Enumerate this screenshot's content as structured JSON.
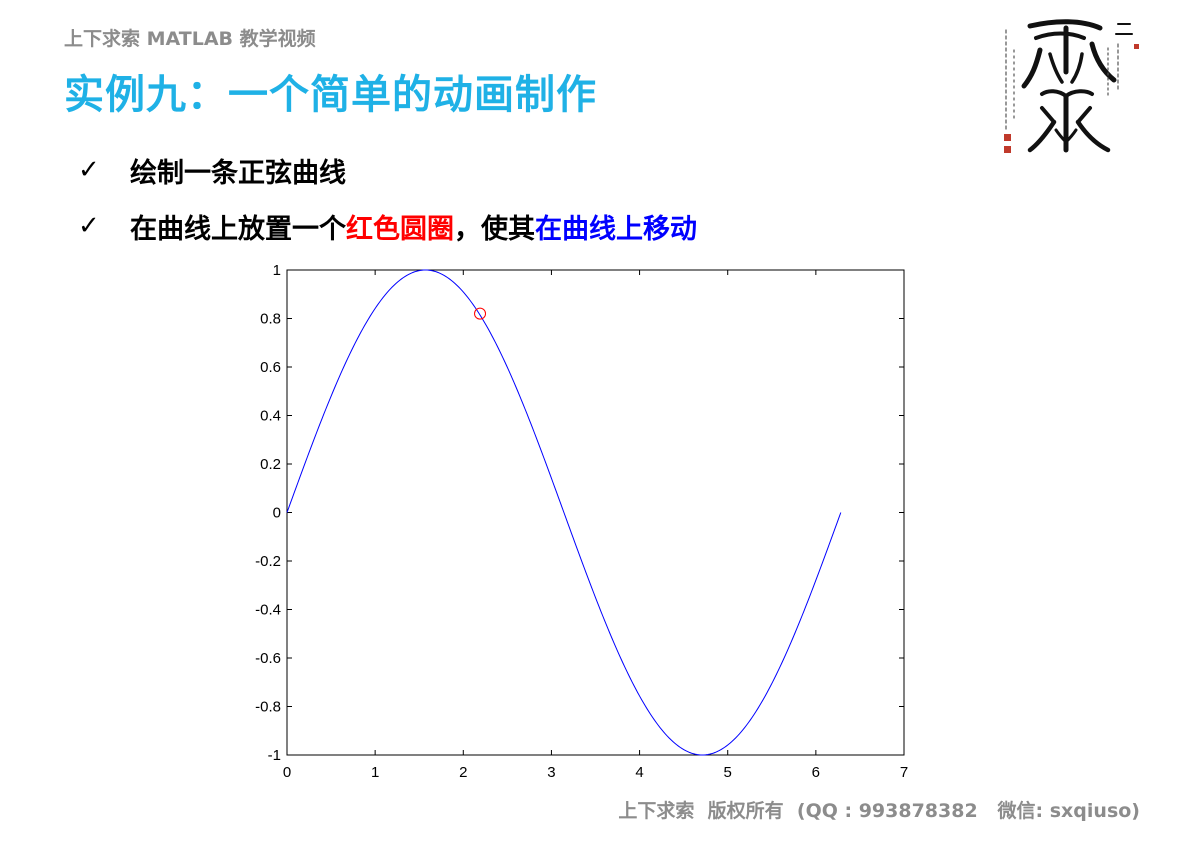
{
  "header": {
    "brand": "上下求索 MATLAB 教学视频"
  },
  "slide": {
    "title": "实例九：一个简单的动画制作",
    "bullets": [
      {
        "parts": [
          {
            "text": "绘制一条正弦曲线",
            "color": "black"
          }
        ]
      },
      {
        "parts": [
          {
            "text": "在曲线上放置一个",
            "color": "black"
          },
          {
            "text": "红色圆圈",
            "color": "red"
          },
          {
            "text": "，使其",
            "color": "black"
          },
          {
            "text": "在曲线上移动",
            "color": "blue"
          }
        ]
      }
    ],
    "check_symbol": "✓"
  },
  "logo": {
    "icon": "calligraphy-seal-icon"
  },
  "chart_data": {
    "type": "line",
    "title": "",
    "xlabel": "",
    "ylabel": "",
    "xlim": [
      0,
      7
    ],
    "ylim": [
      -1,
      1
    ],
    "xticks": [
      0,
      1,
      2,
      3,
      4,
      5,
      6,
      7
    ],
    "yticks": [
      -1,
      -0.8,
      -0.6,
      -0.4,
      -0.2,
      0,
      0.2,
      0.4,
      0.6,
      0.8,
      1
    ],
    "xtick_labels": [
      "0",
      "1",
      "2",
      "3",
      "4",
      "5",
      "6",
      "7"
    ],
    "ytick_labels": [
      "-1",
      "-0.8",
      "-0.6",
      "-0.4",
      "-0.2",
      "0",
      "0.2",
      "0.4",
      "0.6",
      "0.8",
      "1"
    ],
    "grid": false,
    "series": [
      {
        "function": "sin(x)",
        "x_range": [
          0,
          6.2832
        ],
        "color": "#0000ff",
        "x": [
          0,
          0.3142,
          0.6283,
          0.9425,
          1.2566,
          1.5708,
          1.885,
          2.1991,
          2.5133,
          2.8274,
          3.1416,
          3.4558,
          3.7699,
          4.0841,
          4.3982,
          4.7124,
          5.0265,
          5.3407,
          5.6549,
          5.969,
          6.2832
        ],
        "y": [
          0,
          0.309,
          0.5878,
          0.809,
          0.9511,
          1,
          0.9511,
          0.809,
          0.5878,
          0.309,
          0,
          -0.309,
          -0.5878,
          -0.809,
          -0.9511,
          -1,
          -0.9511,
          -0.809,
          -0.5878,
          -0.309,
          0
        ]
      }
    ],
    "marker": {
      "x": 2.19,
      "y": 0.82,
      "shape": "circle",
      "color": "#ff0000"
    }
  },
  "footer": {
    "text": "上下求索  版权所有  (QQ : 993878382   微信: sxqiuso)"
  }
}
